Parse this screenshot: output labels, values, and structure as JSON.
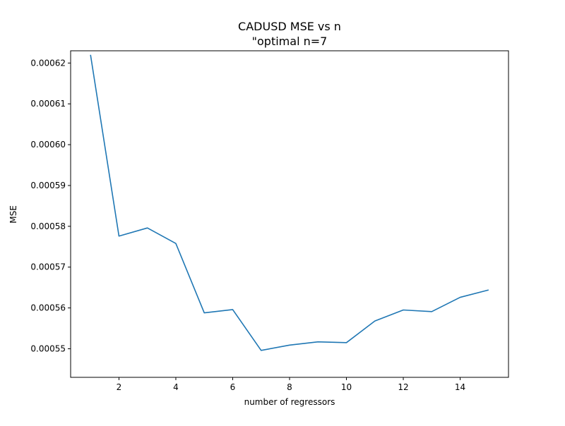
{
  "chart_data": {
    "type": "line",
    "title": "CADUSD MSE vs n",
    "subtitle": "\"optimal n=7",
    "xlabel": "number of regressors",
    "ylabel": "MSE",
    "xlim": [
      0.3,
      15.7
    ],
    "ylim": [
      0.000543,
      0.000623
    ],
    "x_ticks": [
      2,
      4,
      6,
      8,
      10,
      12,
      14
    ],
    "x_tick_labels": [
      "2",
      "4",
      "6",
      "8",
      "10",
      "12",
      "14"
    ],
    "y_ticks": [
      0.00055,
      0.00056,
      0.00057,
      0.00058,
      0.00059,
      0.0006,
      0.00061,
      0.00062
    ],
    "y_tick_labels": [
      "0.00055",
      "0.00056",
      "0.00057",
      "0.00058",
      "0.00059",
      "0.00060",
      "0.00061",
      "0.00062"
    ],
    "grid": false,
    "series": [
      {
        "color": "#1f77b4",
        "x": [
          1,
          2,
          3,
          4,
          5,
          6,
          7,
          8,
          9,
          10,
          11,
          12,
          13,
          14,
          15
        ],
        "y": [
          0.000622,
          0.0005776,
          0.0005796,
          0.0005758,
          0.0005588,
          0.0005596,
          0.0005496,
          0.0005509,
          0.0005517,
          0.0005515,
          0.0005568,
          0.0005595,
          0.0005591,
          0.0005626,
          0.0005644
        ]
      }
    ]
  }
}
